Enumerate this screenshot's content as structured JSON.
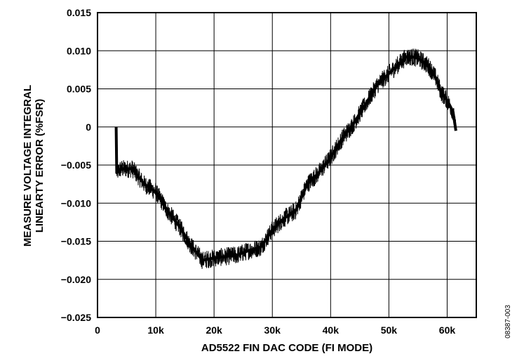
{
  "chart_data": {
    "type": "line",
    "xlabel": "AD5522 FIN DAC CODE (FI MODE)",
    "ylabel_lines": [
      "MEASURE VOLTAGE INTEGRAL",
      "LINEARTY ERROR (%FSR)"
    ],
    "figure_id": "08387-003",
    "xlim": [
      0,
      65000
    ],
    "ylim": [
      -0.025,
      0.015
    ],
    "x_ticks": [
      0,
      10000,
      20000,
      30000,
      40000,
      50000,
      60000
    ],
    "x_tick_labels": [
      "0",
      "10k",
      "20k",
      "30k",
      "40k",
      "50k",
      "60k"
    ],
    "y_ticks": [
      -0.025,
      -0.02,
      -0.015,
      -0.01,
      -0.005,
      0,
      0.005,
      0.01,
      0.015
    ],
    "y_tick_labels": [
      "−0.025",
      "−0.020",
      "−0.015",
      "−0.010",
      "−0.005",
      "0",
      "0.005",
      "0.010",
      "0.015"
    ],
    "grid": true,
    "line_color": "#000000",
    "noise_band": 0.0012,
    "series": [
      {
        "x": [
          3200,
          3300,
          4000,
          6000,
          8000,
          10000,
          12000,
          14000,
          16000,
          18000,
          20000,
          22000,
          24000,
          26000,
          28000,
          30000,
          32000,
          34000,
          36000,
          38000,
          40000,
          42000,
          44000,
          46000,
          48000,
          50000,
          52000,
          53000,
          54000,
          55000,
          56000,
          57000,
          58000,
          59000,
          60000,
          61000,
          61500
        ],
        "y": [
          0.0,
          -0.006,
          -0.0055,
          -0.0055,
          -0.0075,
          -0.0085,
          -0.011,
          -0.013,
          -0.0155,
          -0.0175,
          -0.0172,
          -0.017,
          -0.0168,
          -0.0162,
          -0.0158,
          -0.0135,
          -0.012,
          -0.011,
          -0.0075,
          -0.006,
          -0.004,
          -0.0015,
          0.0005,
          0.003,
          0.0055,
          0.007,
          0.0085,
          0.0092,
          0.0092,
          0.009,
          0.0085,
          0.0078,
          0.0065,
          0.0045,
          0.0035,
          0.002,
          -0.0005
        ]
      }
    ]
  }
}
